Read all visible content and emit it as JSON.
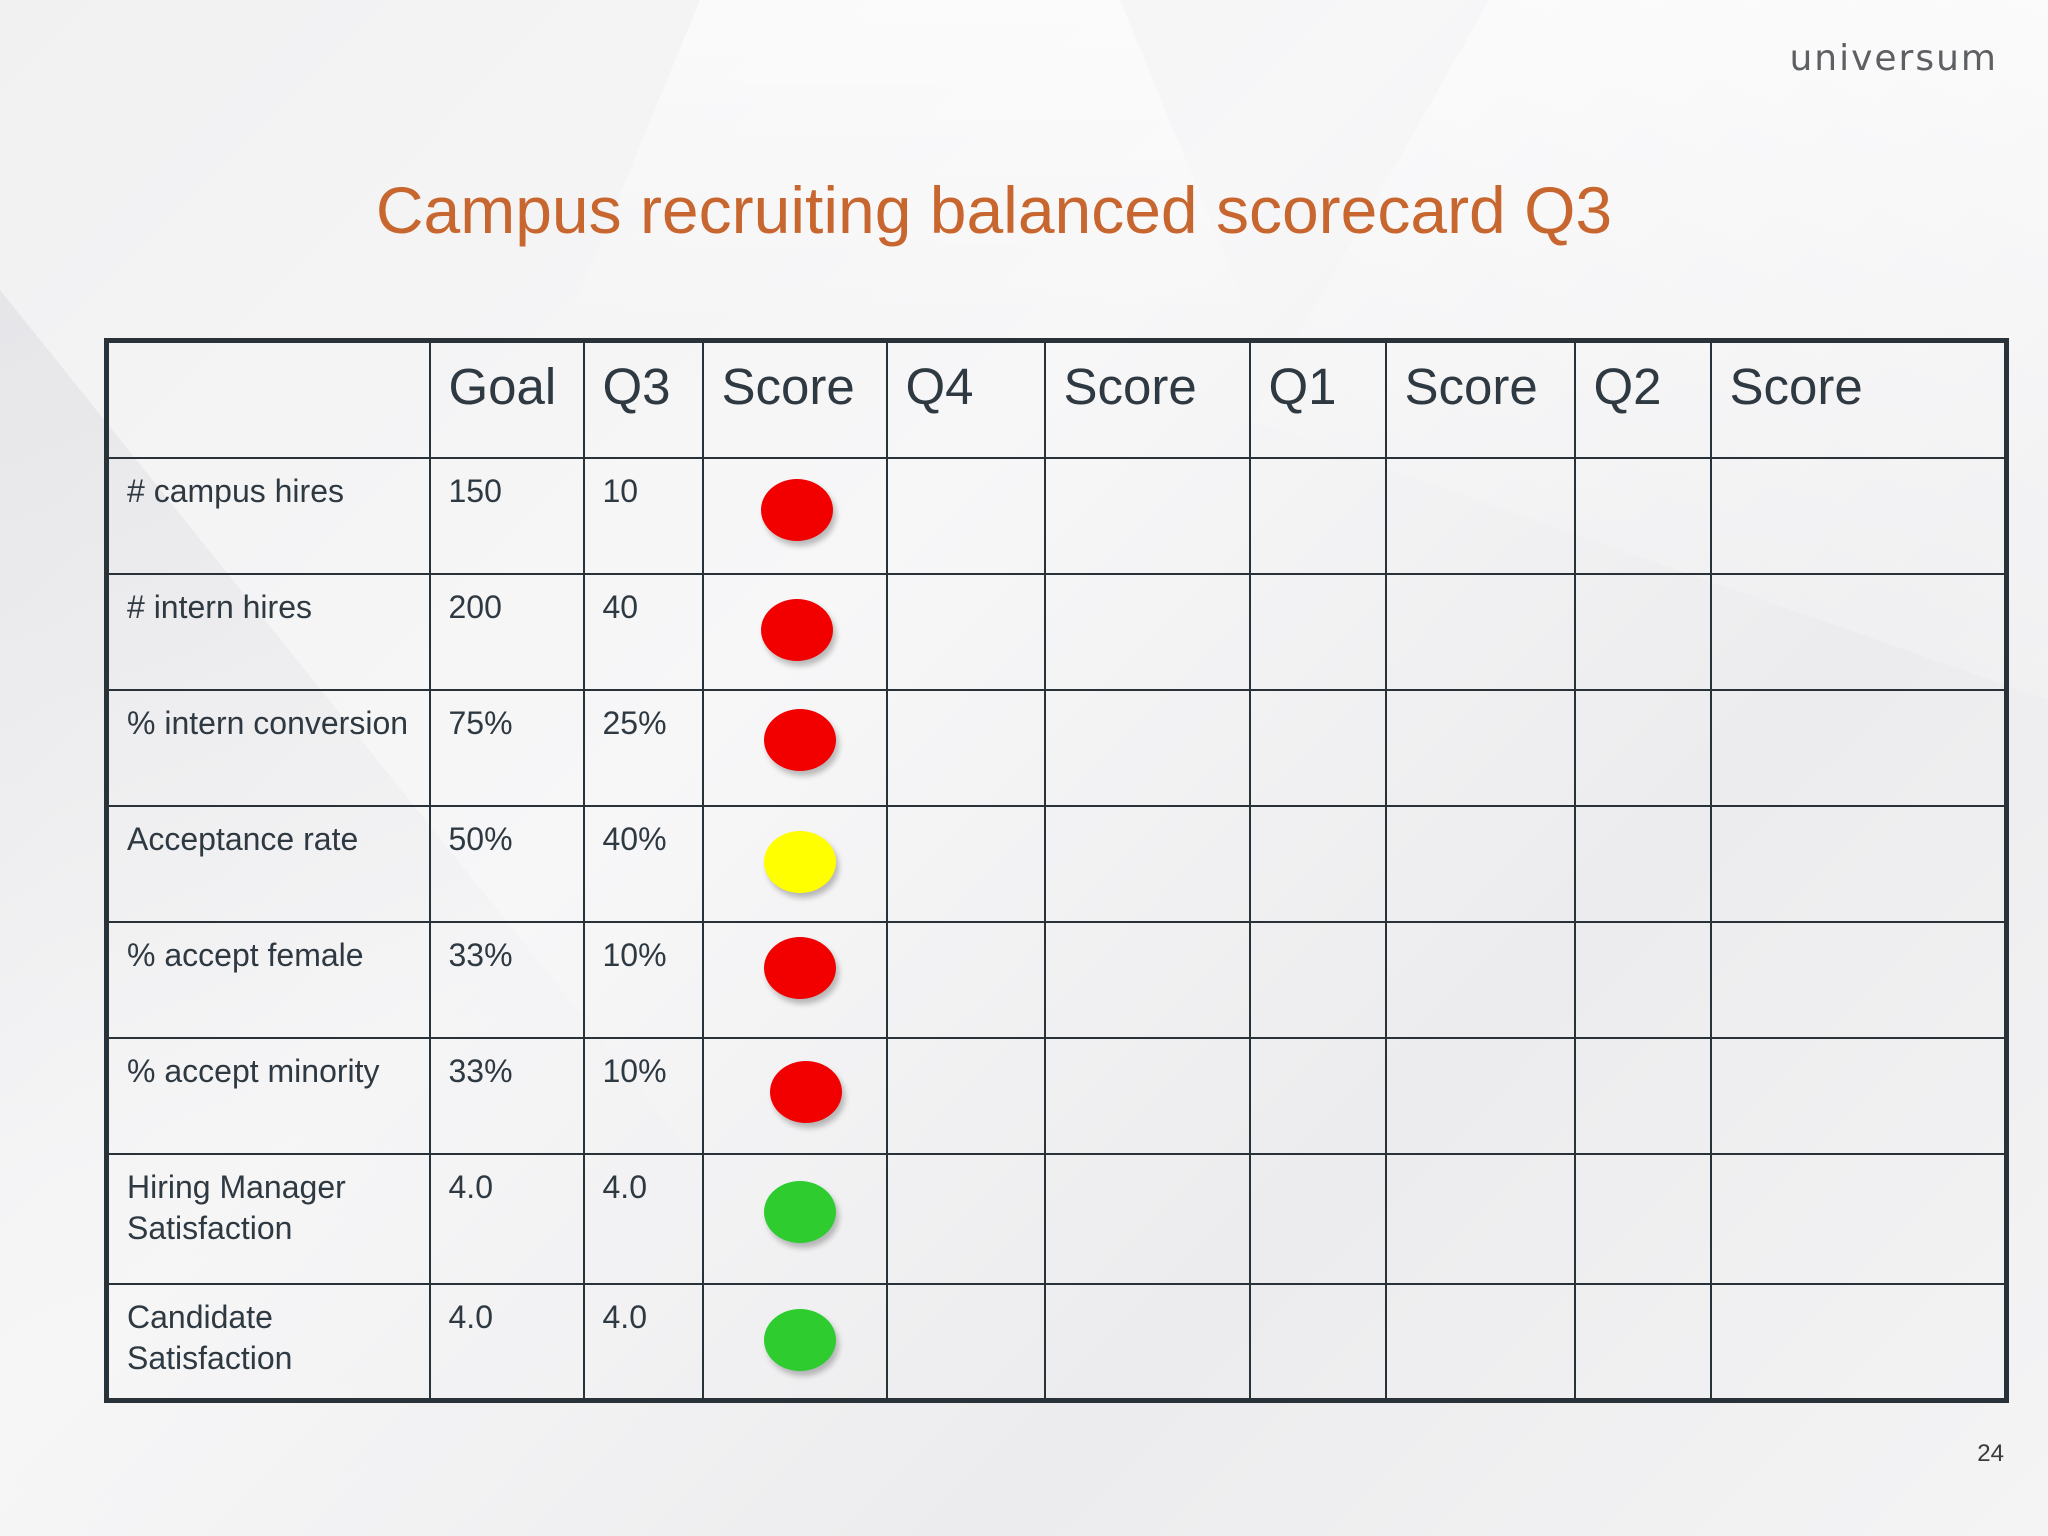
{
  "brand": {
    "logo_text": "universum"
  },
  "slide": {
    "title": "Campus recruiting balanced scorecard Q3",
    "page_number": "24"
  },
  "table": {
    "headers": [
      "",
      "Goal",
      "Q3",
      "Score",
      "Q4",
      "Score",
      "Q1",
      "Score",
      "Q2",
      "Score"
    ],
    "rows": [
      {
        "metric": "# campus hires",
        "goal": "150",
        "q3": "10",
        "q3_score": "red"
      },
      {
        "metric": "# intern hires",
        "goal": "200",
        "q3": "40",
        "q3_score": "red"
      },
      {
        "metric": "% intern conversion",
        "goal": "75%",
        "q3": "25%",
        "q3_score": "red"
      },
      {
        "metric": "Acceptance rate",
        "goal": "50%",
        "q3": "40%",
        "q3_score": "yellow"
      },
      {
        "metric": "% accept female",
        "goal": "33%",
        "q3": "10%",
        "q3_score": "red"
      },
      {
        "metric": "% accept minority",
        "goal": "33%",
        "q3": "10%",
        "q3_score": "red"
      },
      {
        "metric": "Hiring Manager Satisfaction",
        "goal": "4.0",
        "q3": "4.0",
        "q3_score": "green"
      },
      {
        "metric": "Candidate Satisfaction",
        "goal": "4.0",
        "q3": "4.0",
        "q3_score": "green"
      }
    ]
  },
  "colors": {
    "title": "#c8662f",
    "red": "#f20000",
    "yellow": "#ffff00",
    "green": "#2ecc2e",
    "grid": "#283238"
  }
}
